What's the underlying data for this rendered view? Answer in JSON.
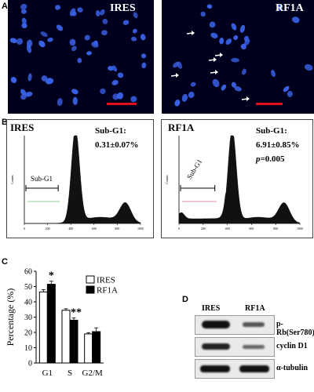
{
  "panels": {
    "a_label": "A",
    "b_label": "B",
    "c_label": "C",
    "d_label": "D"
  },
  "panel_a": {
    "left_title": "IRES",
    "right_title": "RF1A",
    "scale_bar_color": "#e0101a",
    "nucleus_color": "#3a63e8"
  },
  "panel_b": {
    "left": {
      "title": "IRES",
      "subg1_label": "Sub-G1:",
      "subg1_value": "0.31±0.07%",
      "gate_label": "Sub-G1"
    },
    "right": {
      "title": "RF1A",
      "subg1_label": "Sub-G1:",
      "subg1_value": "6.91±0.85%",
      "p_label": "p",
      "p_value": "=0.005",
      "gate_label": "Sub-G1"
    },
    "x_ticks": [
      "0",
      "200",
      "400",
      "600",
      "800",
      "1000"
    ],
    "y_label": "Counts"
  },
  "chart_data": {
    "type": "bar",
    "categories": [
      "G1",
      "S",
      "G2/M"
    ],
    "series": [
      {
        "name": "IRES",
        "values": [
          46.5,
          34.5,
          19
        ],
        "errors": [
          1.5,
          1,
          0.8
        ],
        "color": "#ffffff"
      },
      {
        "name": "RF1A",
        "values": [
          51.5,
          28,
          20.5
        ],
        "errors": [
          2,
          1.5,
          2.5
        ],
        "color": "#000000"
      }
    ],
    "significance": [
      "*",
      "**",
      ""
    ],
    "ylabel": "Percentage (%)",
    "ylim": [
      0,
      60
    ],
    "yticks": [
      "0",
      "10",
      "20",
      "30",
      "40",
      "50",
      "60"
    ],
    "legend_position": "right"
  },
  "panel_d": {
    "lanes": [
      "IRES",
      "RF1A"
    ],
    "bands": [
      "p-Rb(Ser780)",
      "cyclin D1",
      "α-tubulin"
    ]
  }
}
